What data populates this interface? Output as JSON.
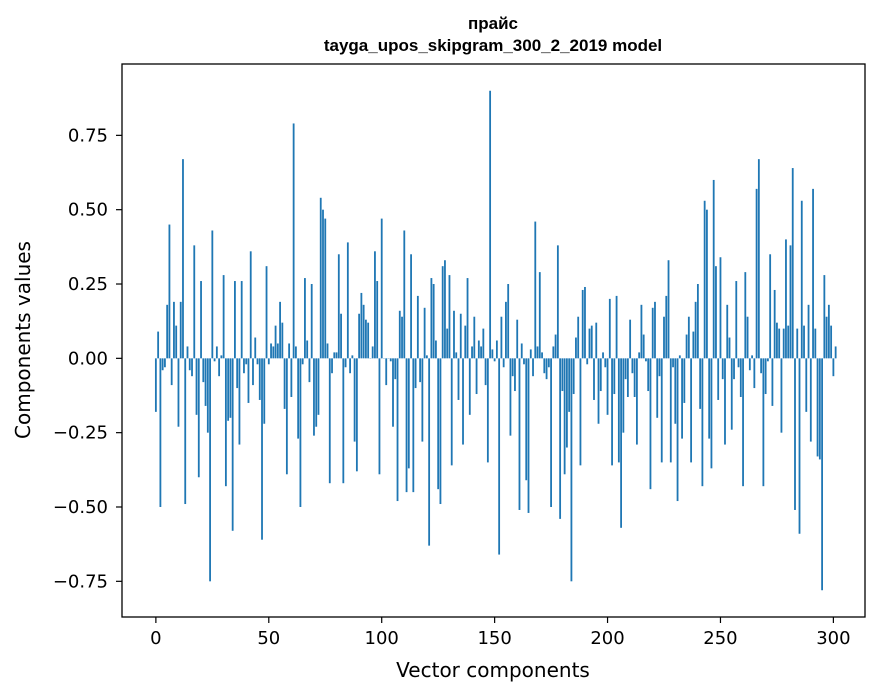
{
  "chart_data": {
    "type": "bar",
    "title_line1": "прайс",
    "title_line2": "tayga_upos_skipgram_300_2_2019 model",
    "xlabel": "Vector components",
    "ylabel": "Components values",
    "xlim": [
      -15,
      314
    ],
    "ylim": [
      -0.87,
      0.99
    ],
    "xticks": [
      0,
      50,
      100,
      150,
      200,
      250,
      300
    ],
    "yticks": [
      -0.75,
      -0.5,
      -0.25,
      0.0,
      0.25,
      0.5,
      0.75
    ],
    "ytick_labels": [
      "−0.75",
      "−0.50",
      "−0.25",
      "0.00",
      "0.25",
      "0.50",
      "0.75"
    ],
    "grid": false,
    "bar_color": "#1f77b4",
    "values": [
      -0.18,
      0.09,
      -0.5,
      -0.04,
      -0.03,
      0.18,
      0.45,
      -0.09,
      0.19,
      0.11,
      -0.23,
      0.19,
      0.67,
      -0.49,
      0.04,
      -0.04,
      -0.06,
      0.38,
      -0.19,
      -0.4,
      0.26,
      -0.08,
      -0.16,
      -0.25,
      -0.75,
      0.43,
      -0.01,
      0.04,
      -0.06,
      0.01,
      0.28,
      -0.43,
      -0.21,
      -0.2,
      -0.58,
      0.26,
      -0.1,
      -0.29,
      0.26,
      -0.05,
      -0.02,
      -0.15,
      0.36,
      -0.09,
      0.07,
      -0.02,
      -0.14,
      -0.61,
      -0.22,
      0.31,
      -0.02,
      0.05,
      0.04,
      0.11,
      0.05,
      0.19,
      0.12,
      -0.17,
      -0.39,
      0.05,
      -0.13,
      0.79,
      0.04,
      -0.27,
      -0.5,
      -0.02,
      0.27,
      0.06,
      -0.08,
      0.25,
      -0.26,
      -0.23,
      -0.19,
      0.54,
      0.5,
      0.47,
      0.05,
      -0.42,
      -0.05,
      0.02,
      0.02,
      0.35,
      0.15,
      -0.42,
      -0.03,
      0.39,
      -0.05,
      0.01,
      -0.28,
      -0.38,
      0.15,
      0.22,
      0.18,
      0.13,
      0.12,
      0.0,
      0.04,
      0.36,
      0.26,
      -0.39,
      0.47,
      0.0,
      -0.09,
      0.0,
      -0.01,
      -0.23,
      -0.07,
      -0.48,
      0.16,
      0.14,
      0.43,
      -0.45,
      -0.37,
      0.35,
      -0.45,
      -0.1,
      0.21,
      -0.08,
      -0.28,
      0.17,
      0.01,
      -0.63,
      0.27,
      0.25,
      0.06,
      -0.44,
      -0.49,
      0.31,
      0.33,
      0.1,
      0.28,
      -0.36,
      0.16,
      0.02,
      -0.14,
      0.15,
      -0.29,
      0.11,
      0.27,
      -0.19,
      0.04,
      0.14,
      -0.12,
      0.06,
      0.04,
      0.1,
      -0.09,
      -0.35,
      0.9,
      0.03,
      -0.01,
      0.06,
      -0.66,
      0.14,
      -0.03,
      0.19,
      0.25,
      -0.26,
      -0.06,
      -0.11,
      0.13,
      -0.51,
      0.05,
      -0.02,
      -0.41,
      -0.52,
      0.03,
      -0.06,
      0.46,
      0.04,
      0.29,
      0.02,
      -0.05,
      -0.07,
      -0.03,
      -0.5,
      0.04,
      0.08,
      0.38,
      -0.54,
      -0.11,
      -0.39,
      -0.3,
      -0.18,
      -0.75,
      -0.12,
      0.07,
      0.14,
      -0.36,
      0.23,
      0.24,
      -0.02,
      0.1,
      0.11,
      -0.14,
      0.12,
      -0.22,
      -0.11,
      0.02,
      -0.03,
      -0.19,
      0.2,
      -0.36,
      -0.12,
      0.21,
      -0.35,
      -0.57,
      -0.25,
      -0.07,
      -0.13,
      0.13,
      -0.05,
      -0.13,
      -0.29,
      0.02,
      0.18,
      0.08,
      -0.01,
      -0.11,
      -0.44,
      0.17,
      0.19,
      -0.2,
      -0.06,
      -0.35,
      0.14,
      0.21,
      0.33,
      -0.35,
      -0.03,
      -0.22,
      -0.48,
      0.01,
      -0.27,
      -0.15,
      0.08,
      0.14,
      -0.35,
      0.09,
      0.19,
      0.25,
      -0.17,
      -0.43,
      0.53,
      0.5,
      -0.27,
      -0.37,
      0.6,
      0.31,
      -0.14,
      0.34,
      -0.07,
      -0.29,
      0.18,
      0.07,
      -0.24,
      -0.07,
      0.26,
      -0.03,
      -0.13,
      -0.43,
      0.29,
      0.14,
      -0.04,
      0.01,
      -0.1,
      0.57,
      0.67,
      -0.05,
      -0.43,
      -0.12,
      -0.01,
      0.35,
      -0.16,
      0.23,
      0.12,
      0.1,
      -0.25,
      0.1,
      0.4,
      0.11,
      0.38,
      0.64,
      -0.51,
      0.1,
      -0.59,
      0.53,
      0.11,
      -0.18,
      0.18,
      -0.28,
      0.57,
      0.1,
      -0.33,
      -0.34,
      -0.78,
      0.28,
      0.14,
      0.18,
      0.11,
      -0.06,
      0.04
    ]
  }
}
